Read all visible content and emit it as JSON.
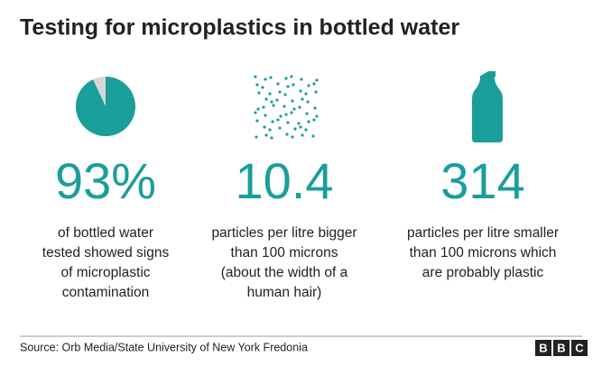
{
  "header": {
    "title": "Testing for microplastics in bottled water"
  },
  "stats": [
    {
      "value": 93,
      "value_label": "93%",
      "lines": [
        "of bottled water",
        "tested showed signs",
        "of microplastic",
        "contamination"
      ]
    },
    {
      "value_label": "10.4",
      "lines": [
        "particles per litre bigger",
        "than 100 microns",
        "(about the width of a",
        "human hair)"
      ]
    },
    {
      "value_label": "314",
      "lines": [
        "particles per litre smaller",
        "than 100 microns which",
        "are probably plastic"
      ]
    }
  ],
  "footer": {
    "source": "Source: Orb Media/State University of New York Fredonia",
    "logo": [
      "B",
      "B",
      "C"
    ]
  }
}
